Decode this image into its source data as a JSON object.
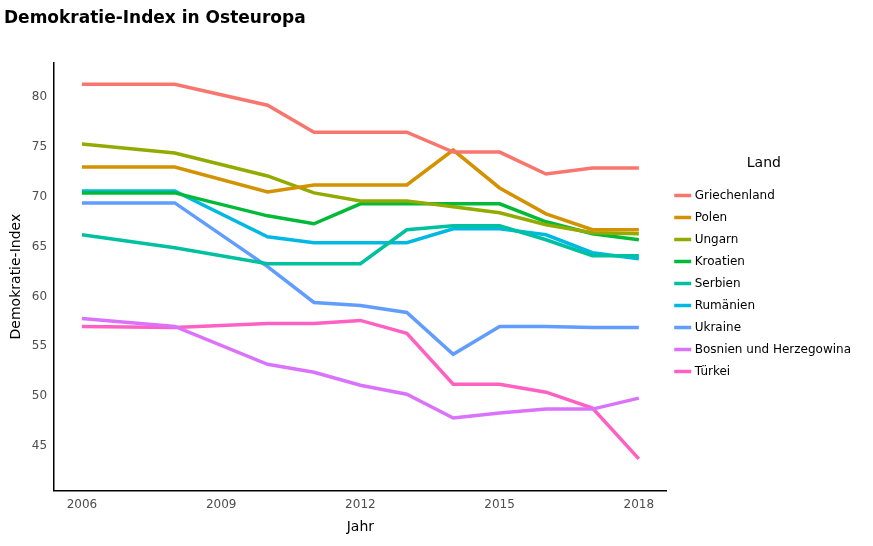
{
  "chart_data": {
    "type": "line",
    "title": "Demokratie-Index in Osteuropa",
    "x_label": "Jahr",
    "y_label": "Demokratie-Index",
    "legend_title": "Land",
    "legend": "right",
    "grid": false,
    "x": [
      2006,
      2008,
      2010,
      2011,
      2012,
      2013,
      2014,
      2015,
      2016,
      2017,
      2018
    ],
    "xlim": [
      2005.4,
      2018.6
    ],
    "xticks": [
      2006,
      2009,
      2012,
      2015,
      2018
    ],
    "ylim": [
      40.5,
      83.5
    ],
    "yticks": [
      45,
      50,
      55,
      60,
      65,
      70,
      75,
      80
    ],
    "series": [
      {
        "name": "Griechenland",
        "color": "#F8766D",
        "values": [
          81.3,
          81.3,
          79.2,
          76.5,
          76.5,
          76.5,
          74.5,
          74.5,
          72.3,
          72.9,
          72.9
        ]
      },
      {
        "name": "Polen",
        "color": "#D39200",
        "values": [
          73.0,
          73.0,
          70.5,
          71.2,
          71.2,
          71.2,
          74.7,
          70.9,
          68.3,
          66.7,
          66.7
        ]
      },
      {
        "name": "Ungarn",
        "color": "#93AA00",
        "values": [
          75.3,
          74.4,
          72.1,
          70.4,
          69.6,
          69.6,
          69.0,
          68.4,
          67.2,
          66.4,
          66.3
        ]
      },
      {
        "name": "Kroatien",
        "color": "#00BA38",
        "values": [
          70.4,
          70.4,
          68.1,
          67.3,
          69.3,
          69.3,
          69.3,
          69.3,
          67.5,
          66.3,
          65.7
        ]
      },
      {
        "name": "Serbien",
        "color": "#00C19F",
        "values": [
          66.2,
          64.9,
          63.3,
          63.3,
          63.3,
          66.7,
          67.1,
          67.1,
          65.7,
          64.1,
          64.1
        ]
      },
      {
        "name": "Rumänien",
        "color": "#00B9E3",
        "values": [
          70.6,
          70.6,
          66.0,
          65.4,
          65.4,
          65.4,
          66.8,
          66.8,
          66.2,
          64.4,
          63.8
        ]
      },
      {
        "name": "Ukraine",
        "color": "#619CFF",
        "values": [
          69.4,
          69.4,
          63.0,
          59.4,
          59.1,
          58.4,
          54.2,
          57.0,
          57.0,
          56.9,
          56.9
        ]
      },
      {
        "name": "Bosnien und Herzegowina",
        "color": "#DB72FB",
        "values": [
          57.8,
          57.0,
          53.2,
          52.4,
          51.1,
          50.2,
          47.8,
          48.3,
          48.7,
          48.7,
          49.8
        ]
      },
      {
        "name": "Türkei",
        "color": "#FF61C3",
        "values": [
          57.0,
          56.9,
          57.3,
          57.3,
          57.6,
          56.3,
          51.2,
          51.2,
          50.4,
          48.8,
          43.7
        ]
      }
    ]
  }
}
